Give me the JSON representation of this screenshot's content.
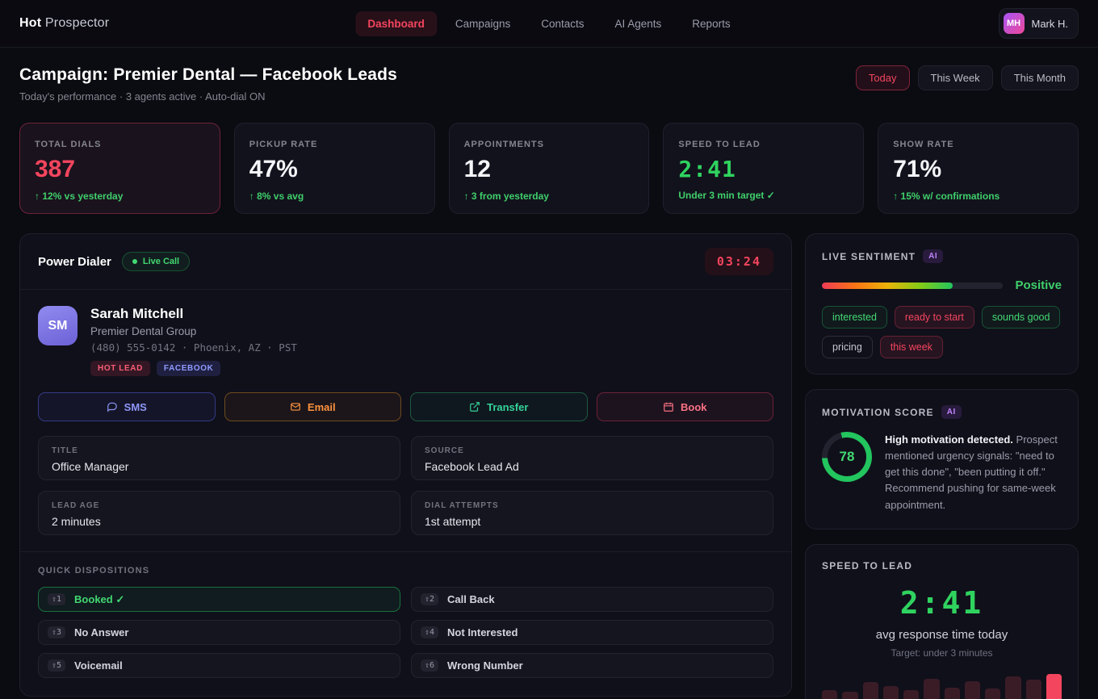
{
  "brand": {
    "bold": "Hot",
    "light": "Prospector"
  },
  "nav": {
    "items": [
      {
        "label": "Dashboard",
        "active": true
      },
      {
        "label": "Campaigns"
      },
      {
        "label": "Contacts"
      },
      {
        "label": "AI Agents"
      },
      {
        "label": "Reports"
      }
    ]
  },
  "user": {
    "initials": "MH",
    "name": "Mark H."
  },
  "page": {
    "title": "Campaign: Premier Dental — Facebook Leads",
    "subtitle": "Today's performance · 3 agents active · Auto-dial ON",
    "range_buttons": [
      {
        "label": "Today",
        "active": true
      },
      {
        "label": "This Week"
      },
      {
        "label": "This Month"
      }
    ]
  },
  "stats": [
    {
      "label": "TOTAL DIALS",
      "value": "387",
      "delta": "↑ 12% vs yesterday"
    },
    {
      "label": "PICKUP RATE",
      "value": "47%",
      "delta": "↑ 8% vs avg"
    },
    {
      "label": "APPOINTMENTS",
      "value": "12",
      "delta": "↑ 3 from yesterday"
    },
    {
      "label": "SPEED TO LEAD",
      "value": "2:41",
      "delta": "Under 3 min target ✓"
    },
    {
      "label": "SHOW RATE",
      "value": "71%",
      "delta": "↑ 15% w/ confirmations"
    }
  ],
  "dialer": {
    "title": "Power Dialer",
    "live_badge": "Live Call",
    "timer": "03:24",
    "contact": {
      "initials": "SM",
      "name": "Sarah Mitchell",
      "company": "Premier Dental Group",
      "meta": "(480) 555-0142 · Phoenix, AZ · PST",
      "tags": [
        {
          "label": "HOT LEAD"
        },
        {
          "label": "FACEBOOK"
        }
      ]
    },
    "actions": [
      {
        "label": "SMS",
        "icon": "sms-icon"
      },
      {
        "label": "Email",
        "icon": "email-icon"
      },
      {
        "label": "Transfer",
        "icon": "transfer-icon"
      },
      {
        "label": "Book",
        "icon": "calendar-icon"
      }
    ],
    "fields": [
      {
        "label": "TITLE",
        "value": "Office Manager"
      },
      {
        "label": "SOURCE",
        "value": "Facebook Lead Ad"
      },
      {
        "label": "LEAD AGE",
        "value": "2 minutes"
      },
      {
        "label": "DIAL ATTEMPTS",
        "value": "1st attempt"
      }
    ],
    "dispositions_title": "QUICK DISPOSITIONS",
    "dispositions": [
      {
        "key": "⇧1",
        "label": "Booked ✓",
        "active": true
      },
      {
        "key": "⇧2",
        "label": "Call Back"
      },
      {
        "key": "⇧3",
        "label": "No Answer"
      },
      {
        "key": "⇧4",
        "label": "Not Interested"
      },
      {
        "key": "⇧5",
        "label": "Voicemail"
      },
      {
        "key": "⇧6",
        "label": "Wrong Number"
      }
    ]
  },
  "sentiment": {
    "title": "LIVE SENTIMENT",
    "ai_badge": "AI",
    "fill_percent": 72,
    "label": "Positive",
    "tags": [
      {
        "label": "interested",
        "tone": "green"
      },
      {
        "label": "ready to start",
        "tone": "red"
      },
      {
        "label": "sounds good",
        "tone": "green"
      },
      {
        "label": "pricing",
        "tone": "neutral"
      },
      {
        "label": "this week",
        "tone": "red"
      }
    ]
  },
  "motivation": {
    "title": "MOTIVATION SCORE",
    "ai_badge": "AI",
    "score": 78,
    "lead": "High motivation detected.",
    "body": " Prospect mentioned urgency signals: \"need to get this done\", \"been putting it off.\" Recommend pushing for same-week appointment."
  },
  "speed": {
    "title": "SPEED TO LEAD",
    "value": "2:41",
    "caption": "avg response time today",
    "target": "Target: under 3 minutes"
  },
  "chart_data": {
    "type": "bar",
    "title": "Speed to lead sparkline",
    "values": [
      44,
      39,
      71,
      59,
      44,
      83,
      54,
      76,
      51,
      93,
      80,
      100
    ],
    "highlight_index": 11,
    "bar_color": "#3a1c27",
    "highlight_color": "#f4455e"
  },
  "colors": {
    "accent_red": "#f4455e",
    "green": "#22c55e",
    "indigo": "#818cf8",
    "orange": "#fb923c",
    "purple": "#c084fc",
    "background": "#0b0b12",
    "card": "#12121c"
  }
}
